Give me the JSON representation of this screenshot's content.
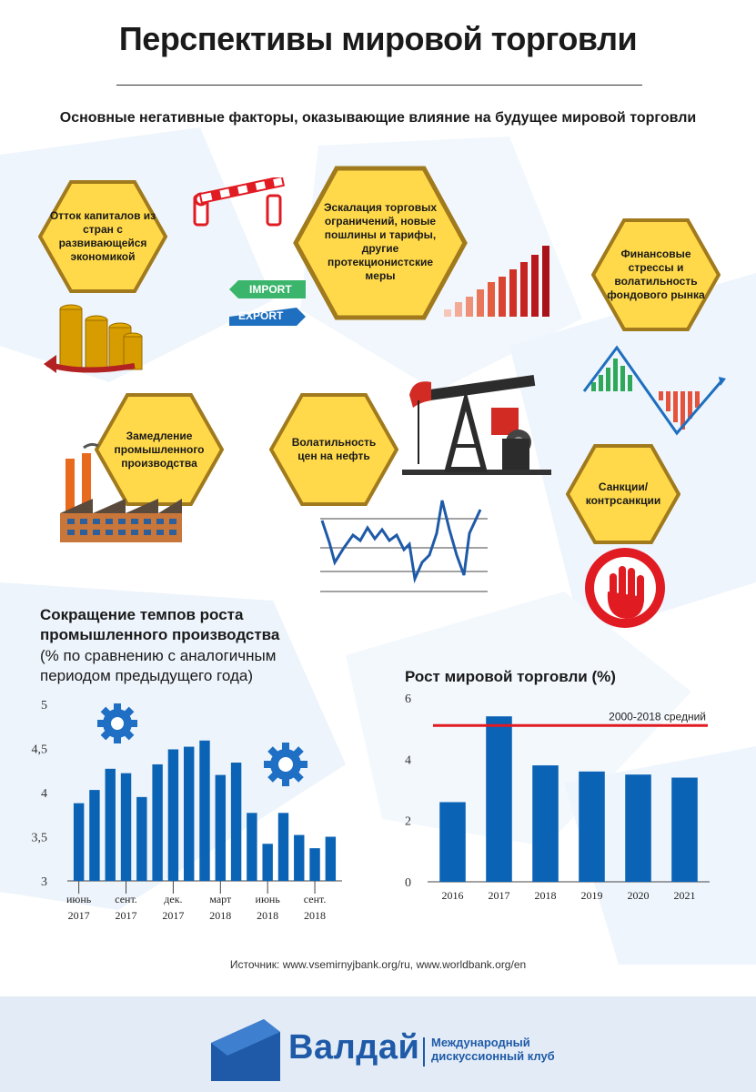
{
  "title": "Перспективы мировой торговли",
  "subtitle": "Основные негативные факторы, оказывающие влияние на будущее мировой торговли",
  "factors": [
    "Отток капиталов из стран с развивающейся экономикой",
    "Эскалация торговых ограничений, новые пошлины и тарифы, другие протекционистские меры",
    "Финансовые стрессы и волатильность фондового рынка",
    "Замедление промышленного производства",
    "Волатильность цен на нефть",
    "Санкции/ контрсанкции"
  ],
  "labels": {
    "import": "IMPORT",
    "export": "EXPORT"
  },
  "colors": {
    "accent_blue": "#0b63b6",
    "hex_gold": "#ffd94a",
    "hex_border": "#a07a1c",
    "red_line": "#e11b22",
    "brand_blue": "#1e5aa8"
  },
  "icons": [
    "barrier-icon",
    "coins-icon",
    "import-export-signs-icon",
    "growth-bars-icon",
    "stock-zigzag-icon",
    "oil-pump-icon",
    "factory-icon",
    "oil-price-line-icon",
    "stop-hand-icon",
    "gear-icon"
  ],
  "chart_data": [
    {
      "type": "bar",
      "title": "Сокращение темпов роста промышленного производства",
      "subtitle": "(% по сравнению с аналогичным периодом предыдущего года)",
      "xlabel": "",
      "ylabel": "",
      "ylim": [
        3,
        5
      ],
      "yticks": [
        "3",
        "3,5",
        "4",
        "4,5",
        "5"
      ],
      "x_tick_labels": [
        {
          "month": "июнь",
          "year": "2017"
        },
        {
          "month": "сент.",
          "year": "2017"
        },
        {
          "month": "дек.",
          "year": "2017"
        },
        {
          "month": "март",
          "year": "2018"
        },
        {
          "month": "июнь",
          "year": "2018"
        },
        {
          "month": "сент.",
          "year": "2018"
        }
      ],
      "values": [
        3.88,
        4.03,
        4.27,
        4.22,
        3.95,
        4.32,
        4.49,
        4.52,
        4.59,
        4.2,
        4.34,
        3.77,
        3.42,
        3.77,
        3.52,
        3.37,
        3.5
      ],
      "color": "#0b63b6"
    },
    {
      "type": "bar",
      "title": "Рост мировой торговли (%)",
      "xlabel": "",
      "ylabel": "",
      "ylim": [
        0,
        6
      ],
      "yticks": [
        "0",
        "2",
        "4",
        "6"
      ],
      "categories": [
        "2016",
        "2017",
        "2018",
        "2019",
        "2020",
        "2021"
      ],
      "values": [
        2.6,
        5.4,
        3.8,
        3.6,
        3.5,
        3.4
      ],
      "reference_line": {
        "label": "2000-2018 средний",
        "value": 5.1
      },
      "color": "#0b63b6"
    }
  ],
  "source": "Источник: www.vsemirnyjbank.org/ru, www.worldbank.org/en",
  "footer": {
    "brand": "Валдай",
    "brand_sub_line1": "Международный",
    "brand_sub_line2": "дискуссионный клуб"
  }
}
